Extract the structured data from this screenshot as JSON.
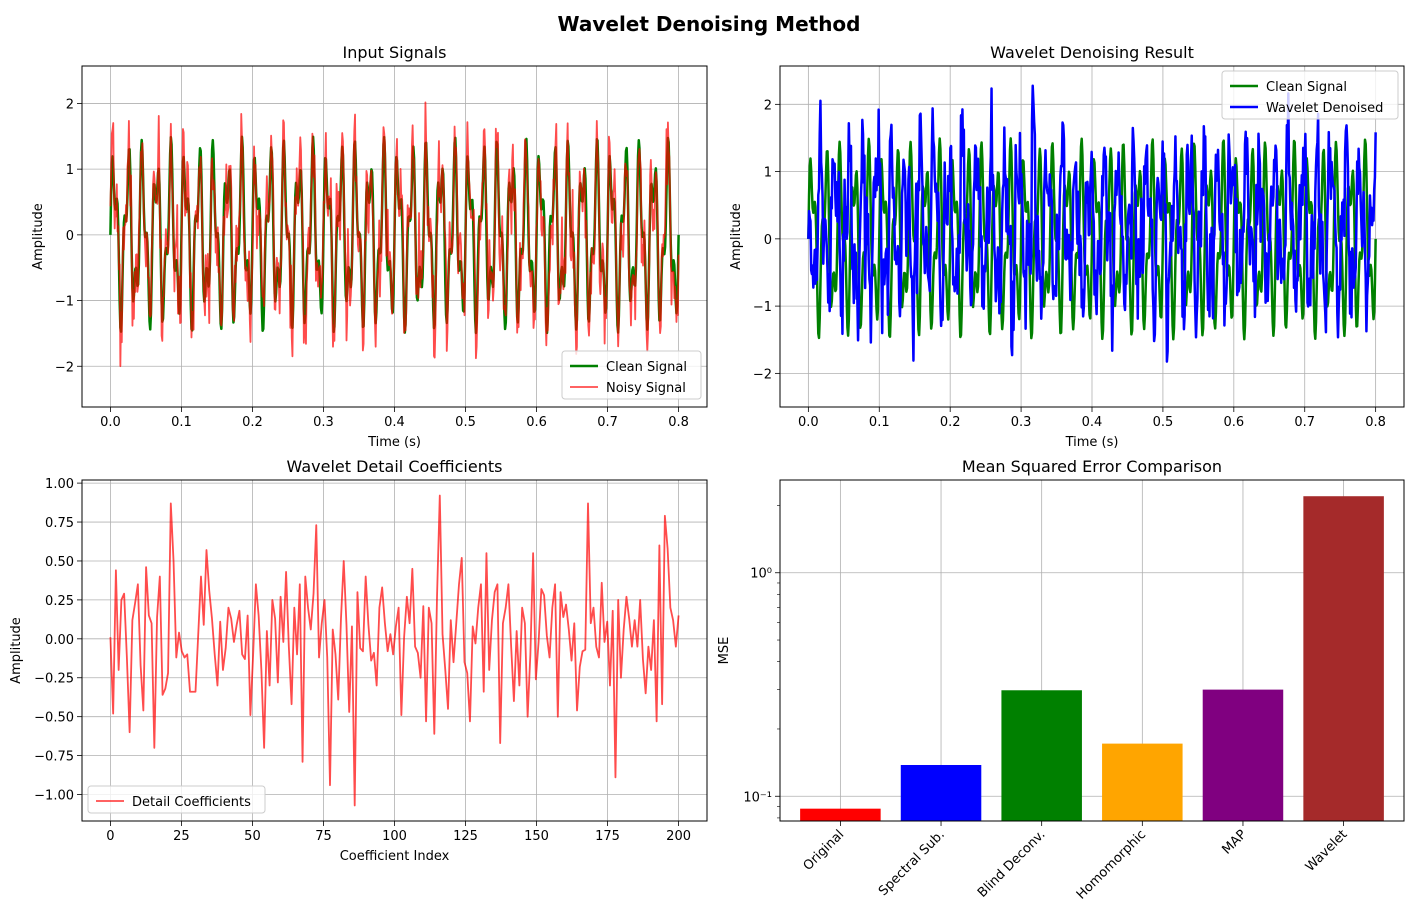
{
  "figure": {
    "title": "Wavelet Denoising Method"
  },
  "colors": {
    "green": "#008000",
    "red": "#ff0000",
    "blue": "#0000ff",
    "orange": "#ffa500",
    "purple": "#800080",
    "brown": "#a52a2a",
    "grid": "#b0b0b0"
  },
  "chart_data": [
    {
      "type": "line",
      "title": "Input Signals",
      "xlabel": "Time (s)",
      "ylabel": "Amplitude",
      "xlim": [
        -0.04,
        0.84
      ],
      "ylim": [
        -2.62,
        2.57
      ],
      "xticks": [
        0.0,
        0.1,
        0.2,
        0.3,
        0.4,
        0.5,
        0.6,
        0.7,
        0.8
      ],
      "xtick_labels": [
        "0.0",
        "0.1",
        "0.2",
        "0.3",
        "0.4",
        "0.5",
        "0.6",
        "0.7",
        "0.8"
      ],
      "yticks": [
        -2,
        -1,
        0,
        1,
        2
      ],
      "ytick_labels": [
        "−2",
        "−1",
        "0",
        "1",
        "2"
      ],
      "grid": true,
      "legend_position": "lower-right",
      "series": [
        {
          "name": "Clean Signal",
          "color": "#008000",
          "linewidth": 2.5,
          "alpha": 1,
          "generator": "sin(2π·50t) + 0.5·sin(2π·120t)",
          "x_range": [
            0,
            0.8
          ],
          "n_points": 800
        },
        {
          "name": "Noisy Signal",
          "color": "#ff0000",
          "linewidth": 1.8,
          "alpha": 0.7,
          "generator": "clean + gaussian noise (σ≈0.3)",
          "x_range": [
            0,
            0.8
          ],
          "n_points": 800,
          "y_min": -2.4,
          "y_max": 2.3
        }
      ]
    },
    {
      "type": "line",
      "title": "Wavelet Denoising Result",
      "xlabel": "Time (s)",
      "ylabel": "Amplitude",
      "xlim": [
        -0.04,
        0.84
      ],
      "ylim": [
        -2.5,
        2.57
      ],
      "xticks": [
        0.0,
        0.1,
        0.2,
        0.3,
        0.4,
        0.5,
        0.6,
        0.7,
        0.8
      ],
      "xtick_labels": [
        "0.0",
        "0.1",
        "0.2",
        "0.3",
        "0.4",
        "0.5",
        "0.6",
        "0.7",
        "0.8"
      ],
      "yticks": [
        -2,
        -1,
        0,
        1,
        2
      ],
      "ytick_labels": [
        "−2",
        "−1",
        "0",
        "1",
        "2"
      ],
      "grid": true,
      "legend_position": "upper-right",
      "series": [
        {
          "name": "Clean Signal",
          "color": "#008000",
          "linewidth": 2.5,
          "alpha": 1,
          "generator": "sin(2π·50t) + 0.5·sin(2π·120t)",
          "x_range": [
            0,
            0.8
          ],
          "n_points": 800
        },
        {
          "name": "Wavelet Denoised",
          "color": "#0000ff",
          "linewidth": 2.5,
          "alpha": 1,
          "generator": "oscillatory reconstruction, phase-shifted from clean",
          "x_range": [
            0,
            0.8
          ],
          "n_points": 800,
          "y_min": -2.27,
          "y_max": 2.45
        }
      ]
    },
    {
      "type": "line",
      "title": "Wavelet Detail Coefficients",
      "xlabel": "Coefficient Index",
      "ylabel": "Amplitude",
      "xlim": [
        -10,
        210
      ],
      "ylim": [
        -1.17,
        1.02
      ],
      "xticks": [
        0,
        25,
        50,
        75,
        100,
        125,
        150,
        175,
        200
      ],
      "xtick_labels": [
        "0",
        "25",
        "50",
        "75",
        "100",
        "125",
        "150",
        "175",
        "200"
      ],
      "yticks": [
        -1.0,
        -0.75,
        -0.5,
        -0.25,
        0.0,
        0.25,
        0.5,
        0.75,
        1.0
      ],
      "ytick_labels": [
        "−1.00",
        "−0.75",
        "−0.50",
        "−0.25",
        "0.00",
        "0.25",
        "0.50",
        "0.75",
        "1.00"
      ],
      "grid": true,
      "legend_position": "lower-left",
      "series": [
        {
          "name": "Detail Coefficients",
          "color": "#ff0000",
          "linewidth": 1.8,
          "alpha": 0.7,
          "x_range": [
            0,
            200
          ],
          "values": [
            0.01,
            -0.48,
            0.44,
            -0.2,
            0.25,
            0.29,
            -0.12,
            -0.6,
            0.12,
            0.23,
            0.35,
            -0.17,
            -0.46,
            0.46,
            0.15,
            0.1,
            -0.7,
            0.14,
            0.4,
            -0.36,
            -0.32,
            -0.22,
            0.87,
            0.5,
            -0.12,
            0.04,
            -0.08,
            -0.12,
            -0.1,
            -0.34,
            -0.34,
            -0.34,
            0.03,
            0.4,
            0.09,
            0.57,
            0.31,
            0.13,
            -0.1,
            -0.3,
            0.11,
            -0.2,
            -0.06,
            0.2,
            0.13,
            -0.02,
            0.09,
            0.18,
            -0.1,
            -0.13,
            0.15,
            -0.49,
            -0.1,
            0.35,
            0.15,
            -0.2,
            -0.7,
            0.05,
            -0.3,
            0.25,
            0.13,
            -0.28,
            0.27,
            -0.02,
            0.43,
            -0.05,
            -0.42,
            0.2,
            -0.1,
            0.35,
            -0.79,
            0.4,
            0.2,
            0.06,
            0.29,
            0.73,
            -0.12,
            0.1,
            0.25,
            -0.12,
            -0.94,
            0.06,
            -0.1,
            -0.39,
            0.13,
            0.5,
            0.09,
            -0.47,
            0.08,
            -1.07,
            0.3,
            -0.06,
            -0.08,
            0.4,
            0.09,
            -0.14,
            -0.09,
            -0.3,
            0.2,
            0.33,
            0.1,
            -0.08,
            0.03,
            -0.1,
            0.08,
            0.2,
            -0.49,
            0.01,
            0.27,
            0.1,
            0.45,
            -0.05,
            -0.09,
            -0.25,
            0.21,
            -0.53,
            0.2,
            0.1,
            -0.61,
            0.28,
            0.92,
            0.03,
            -0.2,
            -0.45,
            0.12,
            -0.15,
            0.1,
            0.35,
            0.52,
            -0.15,
            -0.22,
            -0.53,
            0.08,
            -0.03,
            0.2,
            0.35,
            -0.34,
            0.55,
            -0.2,
            0.12,
            0.3,
            0.35,
            -0.67,
            0.1,
            0.2,
            0.35,
            -0.05,
            -0.4,
            0.05,
            -0.3,
            0.2,
            0.1,
            -0.5,
            -0.1,
            0.55,
            -0.26,
            -0.02,
            0.32,
            0.28,
            0.02,
            -0.12,
            0.2,
            0.35,
            -0.5,
            0.3,
            0.14,
            0.22,
            0.06,
            -0.14,
            0.1,
            -0.46,
            -0.18,
            -0.08,
            -0.07,
            0.87,
            0.1,
            0.2,
            -0.05,
            -0.12,
            0.36,
            -0.02,
            0.11,
            -0.3,
            0.18,
            -0.89,
            0.25,
            -0.25,
            0.06,
            0.27,
            0.13,
            -0.05,
            0.12,
            -0.05,
            0.25,
            -0.13,
            -0.35,
            -0.05,
            -0.2,
            0.12,
            -0.53,
            0.6,
            -0.42,
            0.79,
            0.58,
            0.2,
            0.12,
            -0.05,
            0.15
          ]
        }
      ]
    },
    {
      "type": "bar",
      "title": "Mean Squared Error Comparison",
      "ylabel": "MSE",
      "yscale": "log",
      "ylim": [
        0.0775,
        2.6
      ],
      "yticks": [
        0.1,
        1
      ],
      "ytick_labels": [
        "10⁻¹",
        "10⁰"
      ],
      "grid": true,
      "categories": [
        "Original",
        "Spectral Sub.",
        "Blind Deconv.",
        "Homomorphic",
        "MAP",
        "Wavelet"
      ],
      "values": [
        0.088,
        0.138,
        0.298,
        0.172,
        0.3,
        2.2
      ],
      "bar_colors": [
        "#ff0000",
        "#0000ff",
        "#008000",
        "#ffa500",
        "#800080",
        "#a52a2a"
      ]
    }
  ]
}
